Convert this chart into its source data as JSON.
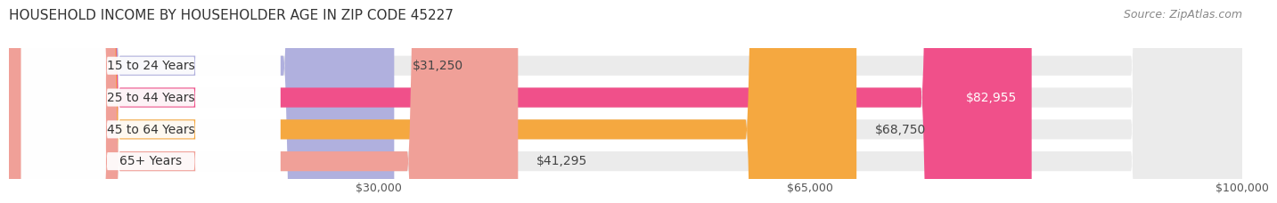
{
  "title": "HOUSEHOLD INCOME BY HOUSEHOLDER AGE IN ZIP CODE 45227",
  "source": "Source: ZipAtlas.com",
  "categories": [
    "15 to 24 Years",
    "25 to 44 Years",
    "45 to 64 Years",
    "65+ Years"
  ],
  "values": [
    31250,
    82955,
    68750,
    41295
  ],
  "bar_colors": [
    "#b0b0de",
    "#f0508a",
    "#f5a840",
    "#f0a098"
  ],
  "bar_bg_color": "#ebebeb",
  "value_labels": [
    "$31,250",
    "$82,955",
    "$68,750",
    "$41,295"
  ],
  "value_label_inside": [
    false,
    true,
    false,
    false
  ],
  "x_ticks": [
    30000,
    65000,
    100000
  ],
  "x_tick_labels": [
    "$30,000",
    "$65,000",
    "$100,000"
  ],
  "xmin": 0,
  "xmax": 100000,
  "background_color": "#ffffff",
  "grid_color": "#cccccc",
  "title_fontsize": 11,
  "label_fontsize": 10,
  "value_fontsize": 10,
  "source_fontsize": 9,
  "tick_fontsize": 9
}
